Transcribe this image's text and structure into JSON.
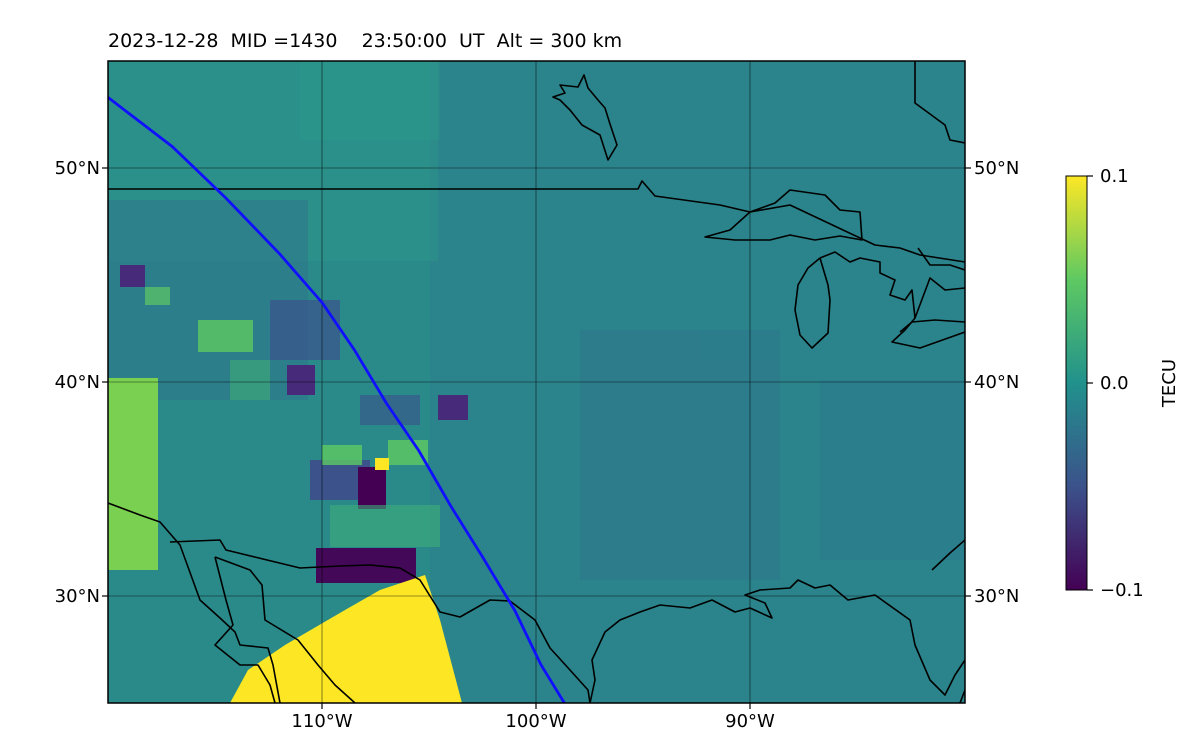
{
  "title": "2023-12-28  MID =1430    23:50:00  UT  Alt = 300 km",
  "map": {
    "lon_range": [
      -120,
      -80
    ],
    "lat_range": [
      25,
      55
    ],
    "lon_ticks": [
      {
        "value": -110,
        "label": "110°W"
      },
      {
        "value": -100,
        "label": "100°W"
      },
      {
        "value": -90,
        "label": "90°W"
      }
    ],
    "lat_ticks": [
      {
        "value": 30,
        "label": "30°N"
      },
      {
        "value": 40,
        "label": "40°N"
      },
      {
        "value": 50,
        "label": "50°N"
      }
    ],
    "background_color": "#2a8a8a",
    "track_color": "#1010ff",
    "track": [
      [
        -120,
        53.3
      ],
      [
        -117,
        51
      ],
      [
        -114.5,
        48.6
      ],
      [
        -112,
        46
      ],
      [
        -110,
        43.7
      ],
      [
        -108.5,
        41.5
      ],
      [
        -107,
        39
      ],
      [
        -105.5,
        36.8
      ],
      [
        -104,
        34.2
      ],
      [
        -102.5,
        31.8
      ],
      [
        -101,
        29.3
      ],
      [
        -99.8,
        26.8
      ],
      [
        -98.7,
        25
      ]
    ]
  },
  "colorbar": {
    "label": "TECU",
    "min": -0.1,
    "max": 0.1,
    "ticks": [
      {
        "value": 0.1,
        "label": "0.1"
      },
      {
        "value": 0.0,
        "label": "0.0"
      },
      {
        "value": -0.1,
        "label": "−0.1"
      }
    ],
    "colors": [
      "#440154",
      "#3b528b",
      "#21918c",
      "#5ec962",
      "#fde725"
    ]
  }
}
